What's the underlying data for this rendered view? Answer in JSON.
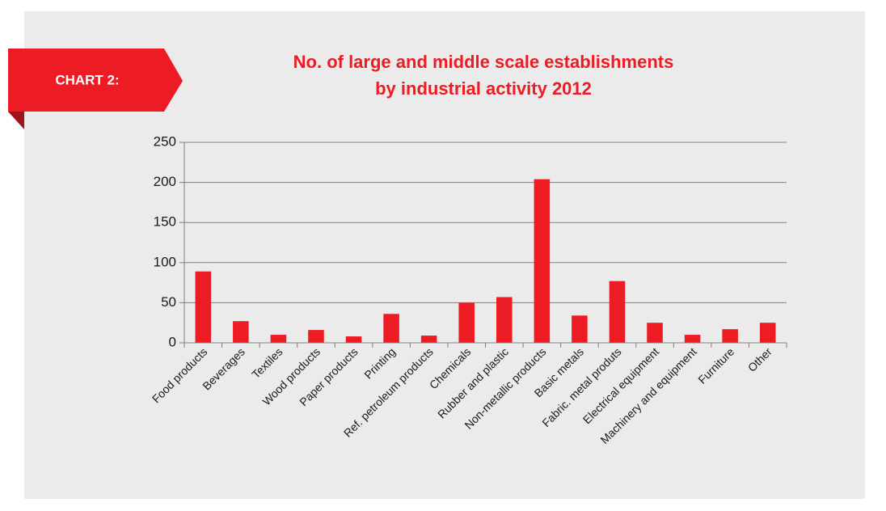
{
  "badge": {
    "label": "CHART 2:"
  },
  "colors": {
    "accent": "#ed1c24",
    "badge_fold": "#a0131a",
    "panel": "#ebebeb",
    "grid": "#7f7f7f",
    "text": "#1a1a1a"
  },
  "chart_data": {
    "type": "bar",
    "title": "No. of large and middle scale establishments",
    "subtitle": "by industrial activity 2012",
    "xlabel": "",
    "ylabel": "",
    "ylim": [
      0,
      250
    ],
    "yticks": [
      0,
      50,
      100,
      150,
      200,
      250
    ],
    "grid": true,
    "legend": "none",
    "categories": [
      "Food products",
      "Beverages",
      "Textiles",
      "Wood products",
      "Paper products",
      "Printing",
      "Ref. petroleum products",
      "Chemicals",
      "Rubber and plastic",
      "Non-metallic products",
      "Basic metals",
      "Fabric. metal produts",
      "Electrical equipment",
      "Machinery and equipment",
      "Furniture",
      "Other"
    ],
    "values": [
      89,
      27,
      10,
      16,
      8,
      36,
      9,
      50,
      57,
      204,
      34,
      77,
      25,
      10,
      17,
      25
    ]
  }
}
